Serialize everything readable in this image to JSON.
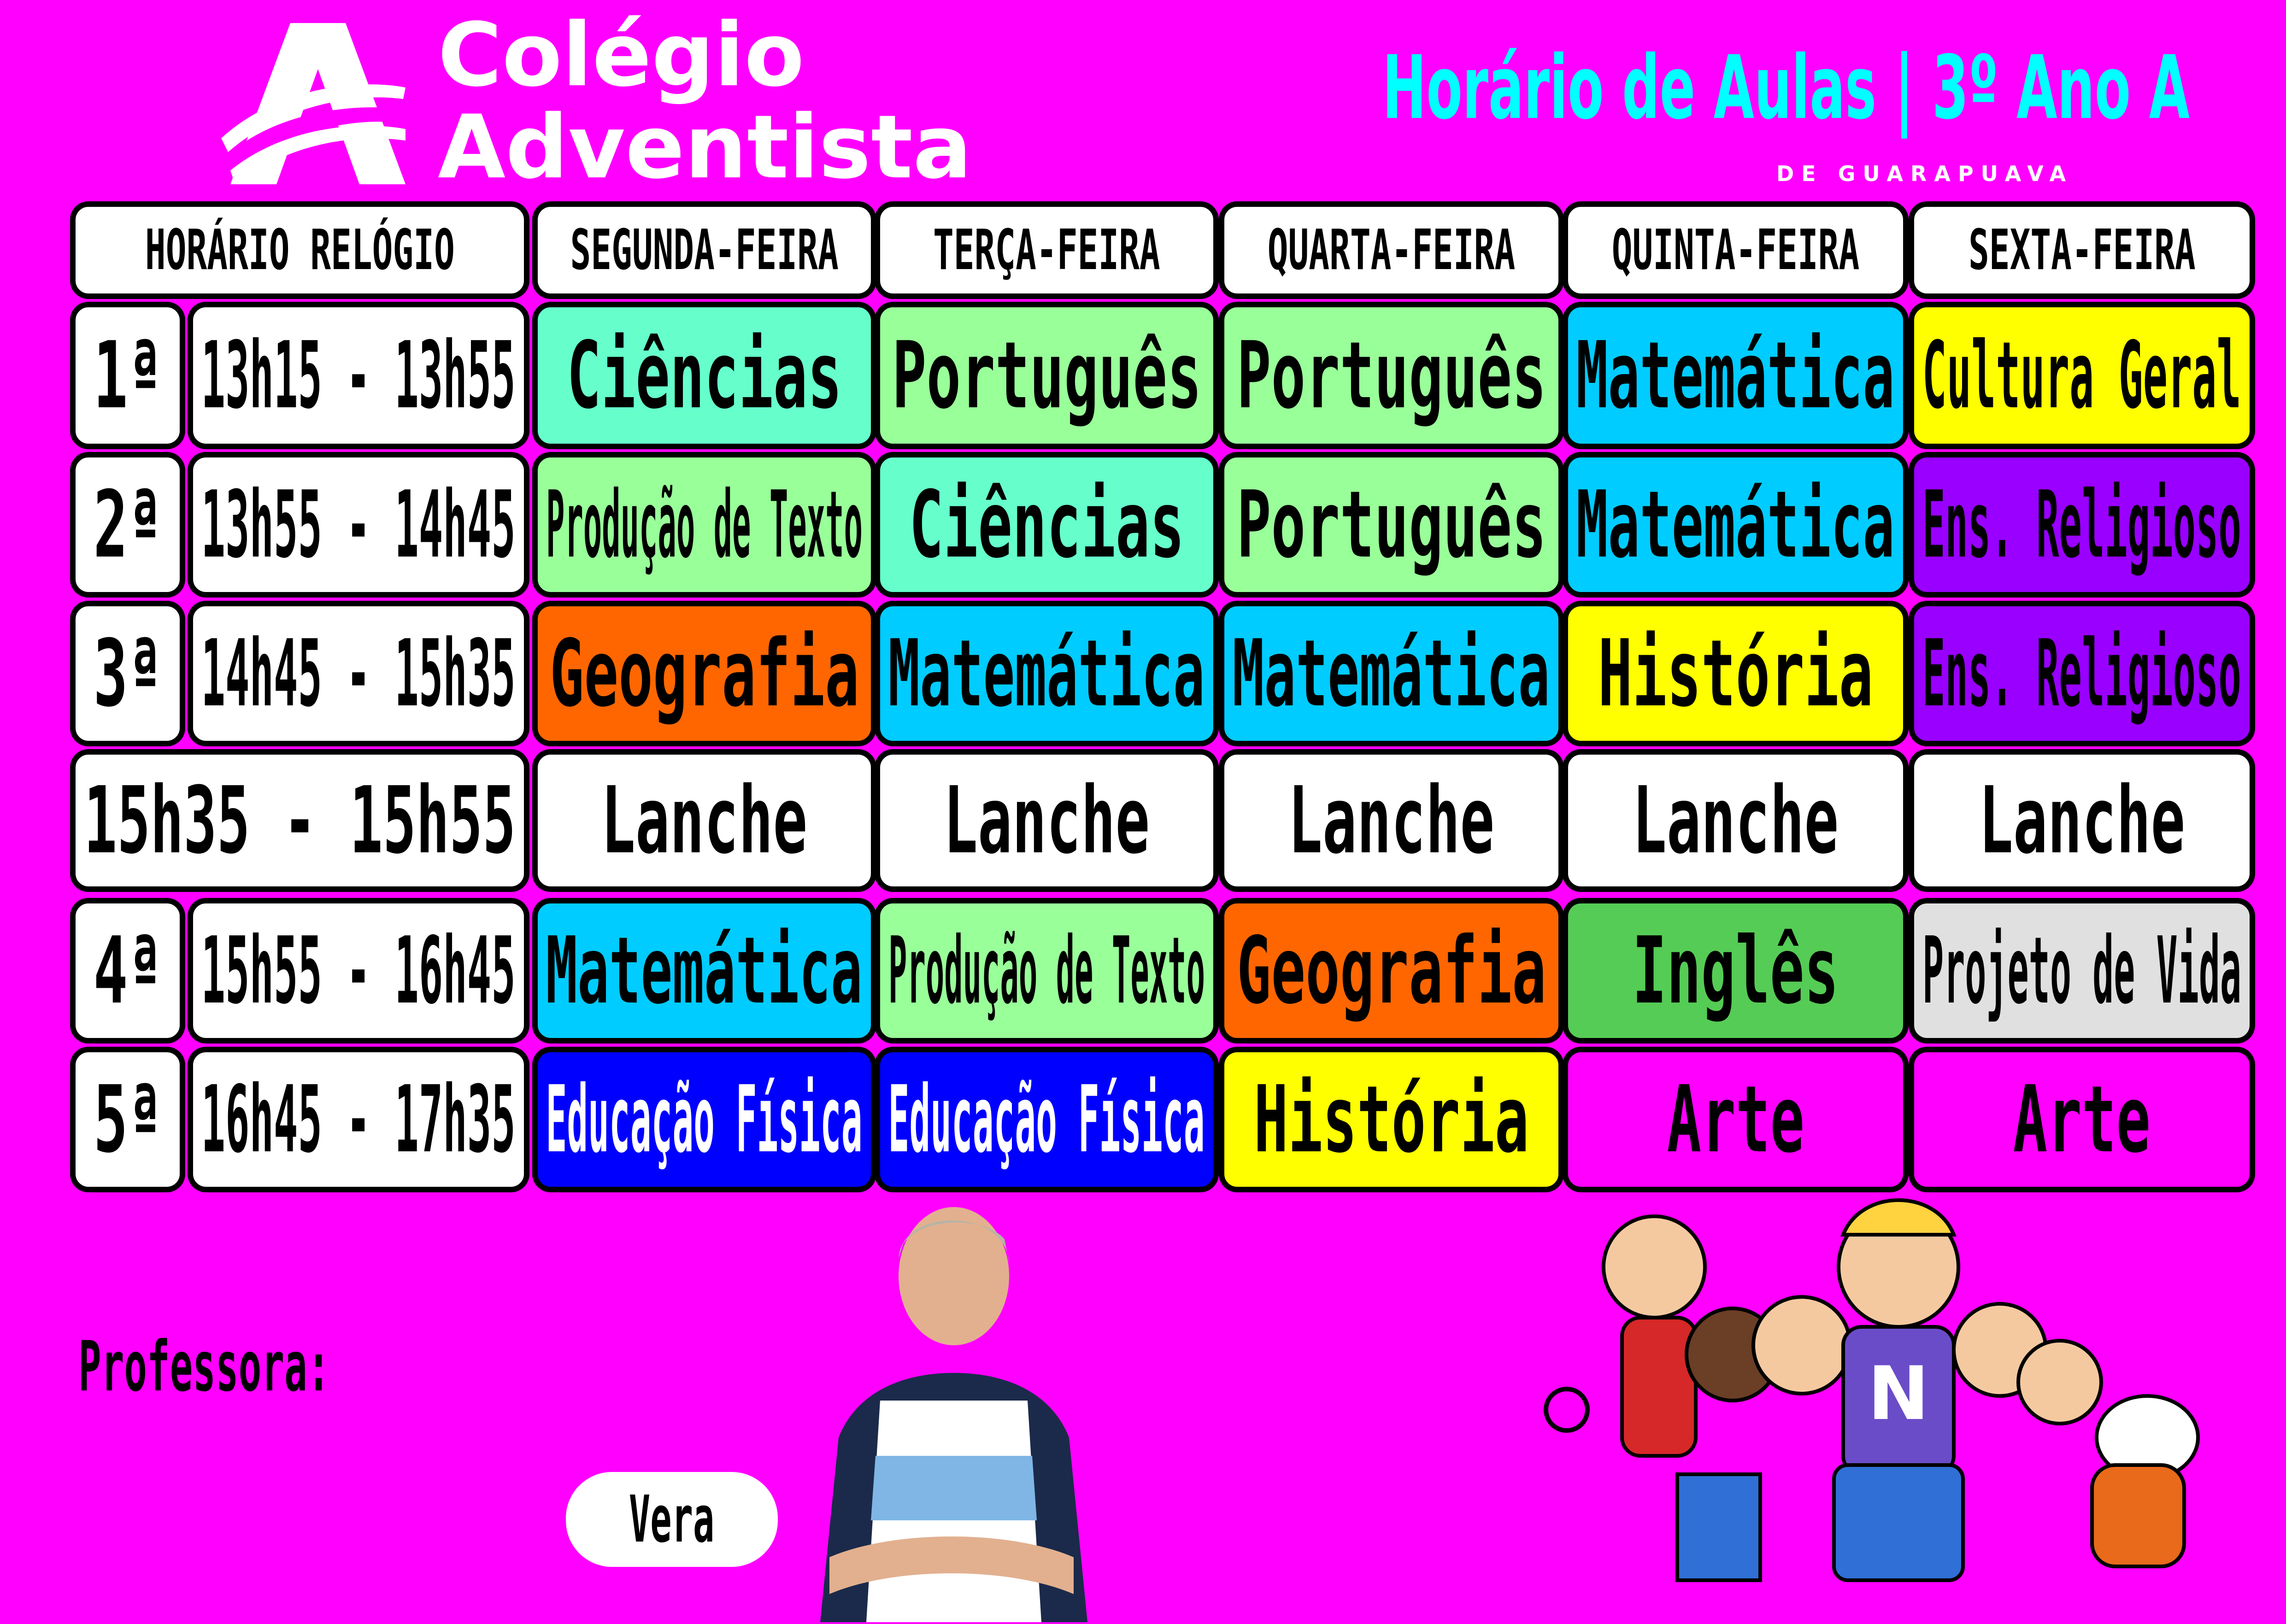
{
  "header": {
    "logo_line1": "Colégio",
    "logo_line2": "Adventista",
    "logo_subtitle": "DE GUARAPUAVA",
    "title": "Horário de Aulas | 3º Ano A"
  },
  "table": {
    "columns": [
      "HORÁRIO RELÓGIO",
      "SEGUNDA-FEIRA",
      "TERÇA-FEIRA",
      "QUARTA-FEIRA",
      "QUINTA-FEIRA",
      "SEXTA-FEIRA"
    ],
    "rows": [
      {
        "period": "1ª",
        "time": "13h15 - 13h55",
        "subjects": [
          "Ciências",
          "Português",
          "Português",
          "Matemática",
          "Cultura Geral"
        ]
      },
      {
        "period": "2ª",
        "time": "13h55 - 14h45",
        "subjects": [
          "Produção de Texto",
          "Ciências",
          "Português",
          "Matemática",
          "Ens. Religioso"
        ]
      },
      {
        "period": "3ª",
        "time": "14h45 - 15h35",
        "subjects": [
          "Geografia",
          "Matemática",
          "Matemática",
          "História",
          "Ens. Religioso"
        ]
      },
      {
        "period": "",
        "time": "15h35 - 15h55",
        "subjects": [
          "Lanche",
          "Lanche",
          "Lanche",
          "Lanche",
          "Lanche"
        ]
      },
      {
        "period": "4ª",
        "time": "15h55 - 16h45",
        "subjects": [
          "Matemática",
          "Produção de Texto",
          "Geografia",
          "Inglês",
          "Projeto de Vida"
        ]
      },
      {
        "period": "5ª",
        "time": "16h45 - 17h35",
        "subjects": [
          "Educação Física",
          "Educação Física",
          "História",
          "Arte",
          "Arte"
        ]
      }
    ]
  },
  "subject_colors": {
    "Ciências": "#66FFCC",
    "Português": "#99FF99",
    "Matemática": "#00CCFF",
    "Cultura Geral": "#FFFF00",
    "Produção de Texto": "#99FF99",
    "Ens. Religioso": "#9900FF",
    "Geografia": "#FF6600",
    "História": "#FFFF00",
    "Lanche": "#FFFFFF",
    "Inglês": "#55CC55",
    "Projeto de Vida": "#E0E0E0",
    "Educação Física": "#0000FF",
    "Arte": "#FF00FF"
  },
  "colors": {
    "background": "#FF00FF",
    "title": "#00FFFF"
  },
  "teacher": {
    "label": "Professora:",
    "name": "Vera"
  }
}
